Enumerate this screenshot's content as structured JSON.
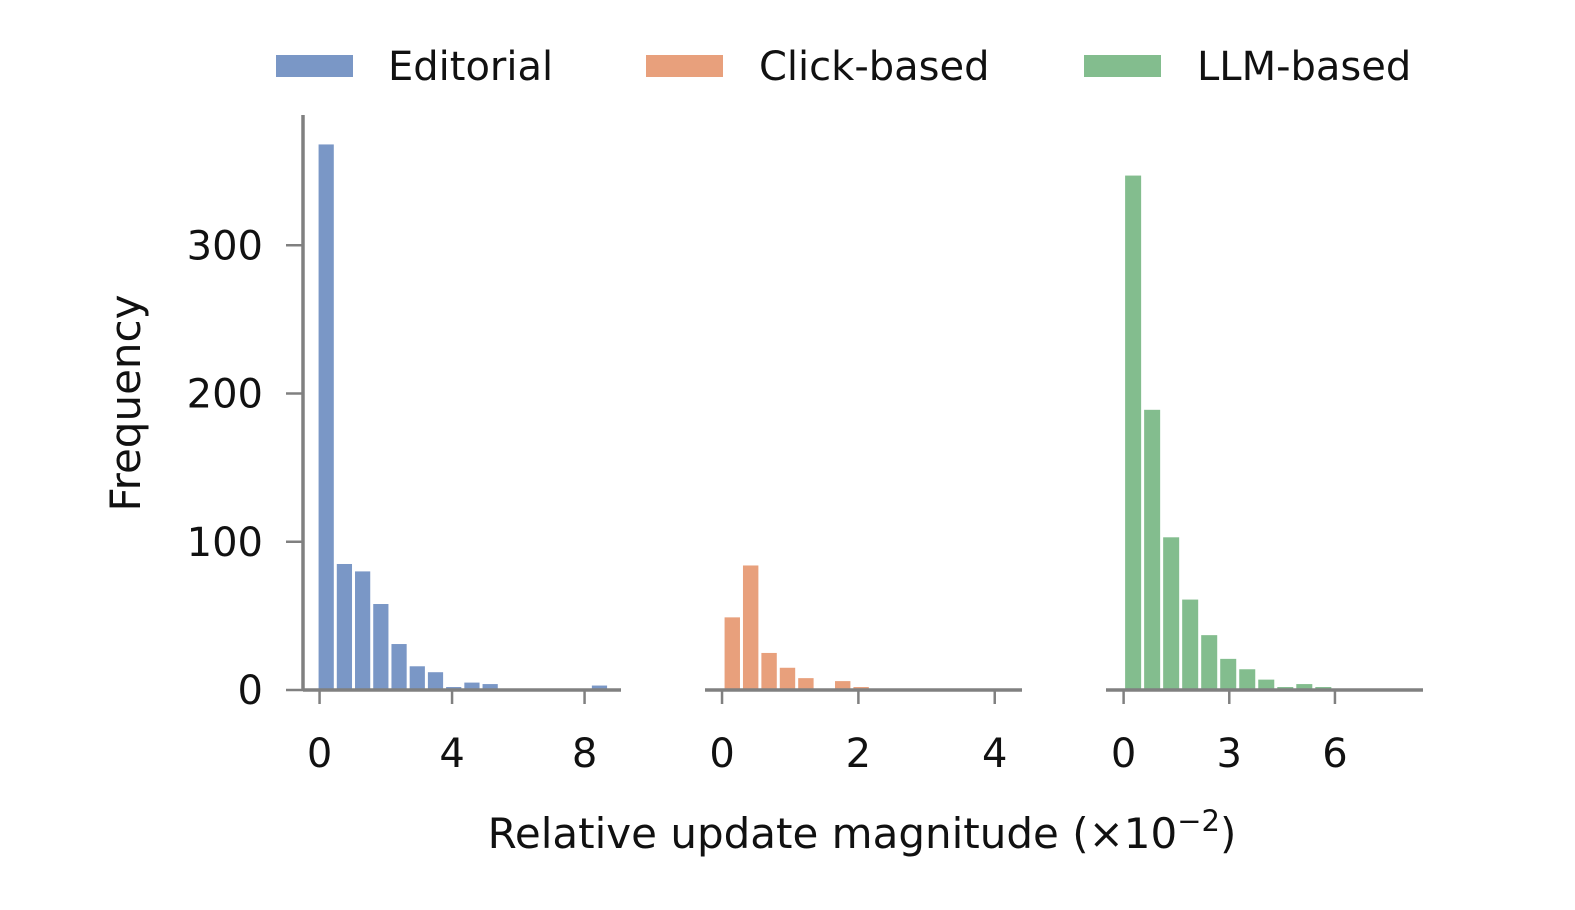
{
  "chart_data": [
    {
      "type": "bar",
      "series_name": "Editorial",
      "color": "#7a97c6",
      "x": [
        0.2,
        0.75,
        1.3,
        1.85,
        2.4,
        2.95,
        3.5,
        4.05,
        4.6,
        5.15,
        5.7,
        6.25,
        6.8,
        7.35,
        7.9,
        8.45
      ],
      "values": [
        368,
        85,
        80,
        58,
        31,
        16,
        12,
        2,
        5,
        4,
        1,
        1,
        1,
        1,
        1,
        3
      ],
      "bin_width": 0.55,
      "xlim": [
        -0.5,
        9.1
      ],
      "ylim": [
        0,
        388
      ],
      "xticks": [
        0,
        4,
        8
      ],
      "yticks": [
        0,
        100,
        200,
        300
      ]
    },
    {
      "type": "bar",
      "series_name": "Click-based",
      "color": "#e8a07c",
      "x": [
        0.15,
        0.42,
        0.69,
        0.96,
        1.23,
        1.5,
        1.77,
        2.04,
        2.31,
        2.58,
        2.85,
        3.12,
        3.39,
        3.66,
        3.93,
        4.2
      ],
      "values": [
        49,
        84,
        25,
        15,
        8,
        1,
        6,
        2,
        1,
        1,
        1,
        1,
        1,
        1,
        1,
        1
      ],
      "bin_width": 0.27,
      "xlim": [
        -0.25,
        4.4
      ],
      "ylim": [
        0,
        388
      ],
      "xticks": [
        0,
        2,
        4
      ],
      "yticks": []
    },
    {
      "type": "bar",
      "series_name": "LLM-based",
      "color": "#83bd8e",
      "x": [
        0.27,
        0.81,
        1.35,
        1.89,
        2.43,
        2.97,
        3.51,
        4.05,
        4.59,
        5.13,
        5.67,
        6.21,
        6.75,
        7.29,
        7.83
      ],
      "values": [
        347,
        189,
        103,
        61,
        37,
        21,
        14,
        7,
        2,
        4,
        2,
        1,
        1,
        1,
        1
      ],
      "bin_width": 0.54,
      "xlim": [
        -0.5,
        8.5
      ],
      "ylim": [
        0,
        388
      ],
      "xticks": [
        0,
        3,
        6
      ],
      "yticks": []
    }
  ],
  "legend": {
    "position": "top",
    "items": [
      {
        "label": "Editorial",
        "color": "#7a97c6"
      },
      {
        "label": "Click-based",
        "color": "#e8a07c"
      },
      {
        "label": "LLM-based",
        "color": "#83bd8e"
      }
    ]
  },
  "ylabel": "Frequency",
  "xlabel": "Relative update magnitude (×10",
  "xlabel_exponent": "−2",
  "xlabel_close": ")",
  "grid": false
}
